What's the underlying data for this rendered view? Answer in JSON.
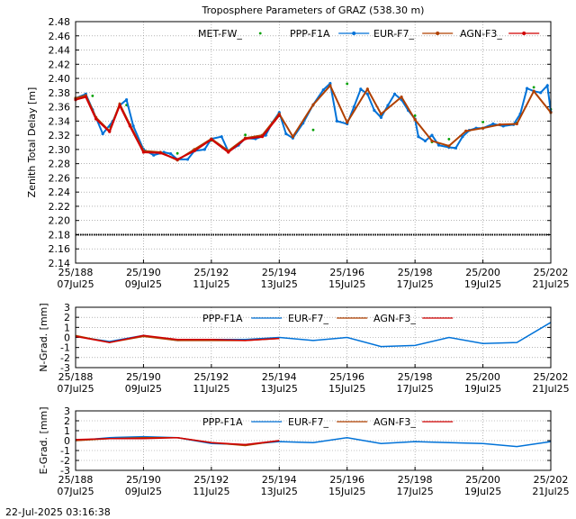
{
  "timestamp": "22-Jul-2025 03:16:38",
  "colors": {
    "met": "#00a000",
    "ppp": "#0072d8",
    "eur": "#b04000",
    "agn": "#d00000",
    "grid": "#888888",
    "black": "#000000"
  },
  "x_ticks": [
    {
      "day": 188,
      "top": "25/188",
      "bottom": "07Jul25"
    },
    {
      "day": 190,
      "top": "25/190",
      "bottom": "09Jul25"
    },
    {
      "day": 192,
      "top": "25/192",
      "bottom": "11Jul25"
    },
    {
      "day": 194,
      "top": "25/194",
      "bottom": "13Jul25"
    },
    {
      "day": 196,
      "top": "25/196",
      "bottom": "15Jul25"
    },
    {
      "day": 198,
      "top": "25/198",
      "bottom": "17Jul25"
    },
    {
      "day": 200,
      "top": "25/200",
      "bottom": "19Jul25"
    },
    {
      "day": 202,
      "top": "25/202",
      "bottom": "21Jul25"
    }
  ],
  "chart_data": [
    {
      "type": "line",
      "title": "Troposphere Parameters of GRAZ (538.30 m)",
      "ylabel": "Zenith Total Delay [m]",
      "xlim": [
        188,
        202
      ],
      "ylim": [
        2.14,
        2.48
      ],
      "yticks": [
        "2.14",
        "2.16",
        "2.18",
        "2.20",
        "2.22",
        "2.24",
        "2.26",
        "2.28",
        "2.30",
        "2.32",
        "2.34",
        "2.36",
        "2.38",
        "2.40",
        "2.42",
        "2.44",
        "2.46",
        "2.48"
      ],
      "grid": true,
      "legend_position": "top",
      "series": [
        {
          "name": "MET-FW_",
          "x": [
            188.0,
            188.5,
            189.0,
            189.5,
            190.0,
            191.0,
            192.0,
            193.0,
            194.0,
            195.0,
            196.0,
            197.0,
            198.0,
            198.5,
            199.0,
            200.0,
            201.0,
            201.5,
            202.0
          ],
          "values": [
            2.37,
            2.373,
            2.33,
            2.36,
            2.298,
            2.292,
            2.31,
            2.318,
            2.345,
            2.325,
            2.39,
            2.345,
            2.345,
            2.308,
            2.312,
            2.336,
            2.335,
            2.385,
            2.354
          ]
        },
        {
          "name": "PPP-F1A",
          "x": [
            188.0,
            188.3,
            188.5,
            188.8,
            189.1,
            189.3,
            189.5,
            189.7,
            190.0,
            190.3,
            190.6,
            190.8,
            191.0,
            191.3,
            191.5,
            191.8,
            192.0,
            192.3,
            192.5,
            192.8,
            193.0,
            193.3,
            193.6,
            193.8,
            194.0,
            194.2,
            194.4,
            194.7,
            195.0,
            195.3,
            195.5,
            195.7,
            196.0,
            196.2,
            196.4,
            196.6,
            196.8,
            197.0,
            197.2,
            197.4,
            197.6,
            197.8,
            198.0,
            198.1,
            198.3,
            198.5,
            198.7,
            199.0,
            199.2,
            199.4,
            199.6,
            199.8,
            200.0,
            200.3,
            200.6,
            200.9,
            201.1,
            201.3,
            201.5,
            201.7,
            201.9,
            202.0
          ],
          "values": [
            2.372,
            2.378,
            2.356,
            2.322,
            2.34,
            2.362,
            2.37,
            2.333,
            2.3,
            2.292,
            2.296,
            2.294,
            2.286,
            2.286,
            2.298,
            2.3,
            2.315,
            2.318,
            2.297,
            2.306,
            2.316,
            2.315,
            2.32,
            2.338,
            2.352,
            2.322,
            2.316,
            2.337,
            2.363,
            2.384,
            2.393,
            2.34,
            2.336,
            2.36,
            2.385,
            2.378,
            2.355,
            2.345,
            2.362,
            2.378,
            2.37,
            2.355,
            2.343,
            2.318,
            2.312,
            2.32,
            2.306,
            2.303,
            2.302,
            2.318,
            2.327,
            2.33,
            2.33,
            2.336,
            2.333,
            2.335,
            2.35,
            2.386,
            2.382,
            2.38,
            2.39,
            2.353
          ]
        },
        {
          "name": "EUR-F7_",
          "x": [
            188.0,
            188.3,
            188.6,
            189.0,
            189.3,
            189.6,
            190.0,
            190.5,
            191.0,
            191.5,
            192.0,
            192.5,
            193.0,
            193.5,
            194.0,
            194.4,
            195.0,
            195.5,
            196.0,
            196.6,
            197.0,
            197.6,
            198.0,
            198.5,
            199.0,
            199.5,
            200.0,
            200.5,
            201.0,
            201.5,
            202.0
          ],
          "values": [
            2.372,
            2.376,
            2.345,
            2.326,
            2.364,
            2.335,
            2.298,
            2.296,
            2.285,
            2.3,
            2.315,
            2.298,
            2.316,
            2.32,
            2.35,
            2.318,
            2.363,
            2.39,
            2.338,
            2.385,
            2.35,
            2.374,
            2.342,
            2.312,
            2.305,
            2.326,
            2.33,
            2.335,
            2.336,
            2.382,
            2.352
          ]
        },
        {
          "name": "AGN-F3_",
          "x": [
            188.0,
            188.3,
            188.6,
            189.0,
            189.3,
            189.6,
            190.0,
            190.5,
            191.0,
            191.5,
            192.0,
            192.5,
            193.0,
            193.5,
            194.0
          ],
          "values": [
            2.37,
            2.374,
            2.343,
            2.325,
            2.362,
            2.333,
            2.296,
            2.295,
            2.286,
            2.298,
            2.314,
            2.296,
            2.315,
            2.318,
            2.348
          ]
        },
        {
          "name": "",
          "x": [
            188.0,
            202.0
          ],
          "values": [
            2.18,
            2.18
          ]
        }
      ]
    },
    {
      "type": "line",
      "ylabel": "N-Grad. [mm]",
      "xlim": [
        188,
        202
      ],
      "ylim": [
        -3,
        3
      ],
      "yticks": [
        "-3",
        "-2",
        "-1",
        "0",
        "1",
        "2",
        "3"
      ],
      "grid": true,
      "legend_position": "top",
      "series": [
        {
          "name": "PPP-F1A",
          "x": [
            188,
            189,
            190,
            191,
            192,
            193,
            194,
            195,
            196,
            197,
            198,
            199,
            200,
            201,
            202
          ],
          "values": [
            0.1,
            -0.4,
            0.2,
            -0.3,
            -0.2,
            -0.2,
            0.0,
            -0.3,
            0.0,
            -0.9,
            -0.8,
            0.0,
            -0.6,
            -0.5,
            1.5
          ]
        },
        {
          "name": "EUR-F7_",
          "x": [
            188,
            189,
            190,
            191,
            192,
            193,
            194
          ],
          "values": [
            0.2,
            -0.5,
            0.1,
            -0.3,
            -0.3,
            -0.3,
            -0.1
          ]
        },
        {
          "name": "AGN-F3_",
          "x": [
            188,
            189,
            190,
            191,
            192,
            193,
            194
          ],
          "values": [
            0.1,
            -0.5,
            0.2,
            -0.2,
            -0.2,
            -0.3,
            -0.1
          ]
        }
      ]
    },
    {
      "type": "line",
      "ylabel": "E-Grad. [mm]",
      "xlim": [
        188,
        202
      ],
      "ylim": [
        -3,
        3
      ],
      "yticks": [
        "-3",
        "-2",
        "-1",
        "0",
        "1",
        "2",
        "3"
      ],
      "grid": true,
      "legend_position": "top",
      "series": [
        {
          "name": "PPP-F1A",
          "x": [
            188,
            189,
            190,
            191,
            192,
            193,
            194,
            195,
            196,
            197,
            198,
            199,
            200,
            201,
            202
          ],
          "values": [
            0.0,
            0.3,
            0.4,
            0.3,
            -0.3,
            -0.4,
            -0.1,
            -0.2,
            0.3,
            -0.3,
            -0.1,
            -0.2,
            -0.3,
            -0.6,
            -0.1
          ]
        },
        {
          "name": "EUR-F7_",
          "x": [
            188,
            189,
            190,
            191,
            192,
            193,
            194
          ],
          "values": [
            0.0,
            0.2,
            0.3,
            0.3,
            -0.2,
            -0.5,
            0.0
          ]
        },
        {
          "name": "AGN-F3_",
          "x": [
            188,
            189,
            190,
            191,
            192,
            193,
            194
          ],
          "values": [
            0.1,
            0.2,
            0.2,
            0.3,
            -0.2,
            -0.4,
            0.0
          ]
        }
      ]
    }
  ]
}
